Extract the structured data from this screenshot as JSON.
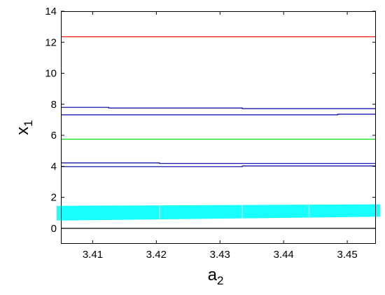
{
  "chart_data": {
    "type": "line",
    "xlabel": {
      "main": "a",
      "sub": "2"
    },
    "ylabel": {
      "main": "x",
      "sub": "1"
    },
    "xlim": [
      3.405,
      3.4545
    ],
    "ylim": [
      -1,
      14
    ],
    "x_ticks": [
      3.41,
      3.42,
      3.43,
      3.44,
      3.45
    ],
    "x_tick_labels": [
      "3.41",
      "3.42",
      "3.43",
      "3.44",
      "3.45"
    ],
    "y_ticks": [
      0,
      2,
      4,
      6,
      8,
      10,
      12,
      14
    ],
    "y_tick_labels": [
      "0",
      "2",
      "4",
      "6",
      "8",
      "10",
      "12",
      "14"
    ],
    "grid": false,
    "series": [
      {
        "color": "#ff0000",
        "points": [
          [
            3.405,
            12.35
          ],
          [
            3.4545,
            12.35
          ]
        ]
      },
      {
        "color": "#0000aa",
        "points": [
          [
            3.405,
            7.8
          ],
          [
            3.4125,
            7.8
          ],
          [
            3.4125,
            7.76
          ],
          [
            3.4335,
            7.76
          ],
          [
            3.4335,
            7.72
          ],
          [
            3.4545,
            7.72
          ]
        ]
      },
      {
        "color": "#0000aa",
        "points": [
          [
            3.405,
            7.32
          ],
          [
            3.4485,
            7.32
          ],
          [
            3.4485,
            7.36
          ],
          [
            3.4545,
            7.36
          ]
        ]
      },
      {
        "color": "#00dd00",
        "points": [
          [
            3.405,
            5.75
          ],
          [
            3.4545,
            5.75
          ]
        ]
      },
      {
        "color": "#0000aa",
        "points": [
          [
            3.405,
            4.22
          ],
          [
            3.4205,
            4.22
          ],
          [
            3.4205,
            4.18
          ],
          [
            3.4545,
            4.18
          ]
        ]
      },
      {
        "color": "#0000aa",
        "points": [
          [
            3.405,
            3.98
          ],
          [
            3.4335,
            3.98
          ],
          [
            3.4335,
            4.02
          ],
          [
            3.4545,
            4.02
          ]
        ]
      },
      {
        "color": "#000000",
        "points": [
          [
            3.405,
            0
          ],
          [
            3.4545,
            0
          ]
        ]
      }
    ],
    "bands": [
      {
        "color": "#00ffff",
        "x_range": [
          3.405,
          3.4545
        ],
        "y_low_start": 0.5,
        "y_high_start": 1.45,
        "y_low_end": 0.75,
        "y_high_end": 1.55
      }
    ]
  }
}
